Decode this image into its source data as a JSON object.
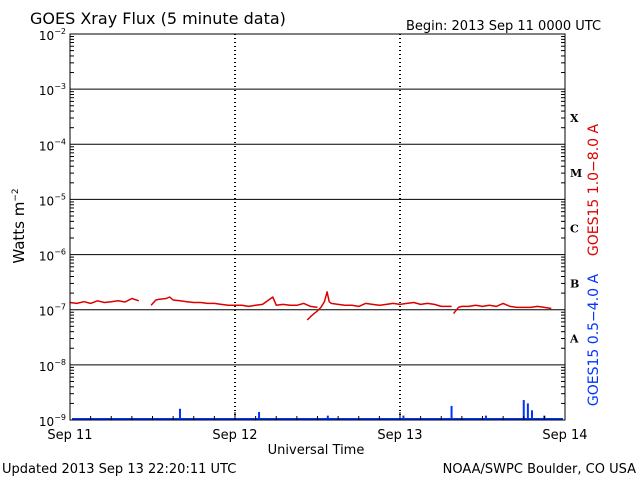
{
  "header": {
    "title": "GOES Xray Flux (5 minute data)",
    "begin": "Begin:  2013 Sep 11 0000 UTC"
  },
  "footer": {
    "updated": "Updated 2013 Sep 13 22:20:11 UTC",
    "credit": "NOAA/SWPC Boulder, CO USA"
  },
  "chart_data": {
    "type": "line",
    "title": "GOES Xray Flux (5 minute data)",
    "xlabel": "Universal Time",
    "ylabel_base": "Watts m",
    "ylabel_exp": "−2",
    "x_unit": "hours since 2013 Sep 11 0000 UTC",
    "xlim": [
      0,
      72
    ],
    "x_ticks": [
      {
        "x": 0,
        "label": "Sep 11"
      },
      {
        "x": 24,
        "label": "Sep 12"
      },
      {
        "x": 48,
        "label": "Sep 13"
      },
      {
        "x": 72,
        "label": "Sep 14"
      }
    ],
    "y_scale": "log",
    "ylim": [
      1e-09,
      0.01
    ],
    "y_ticks": [
      {
        "value": 0.01,
        "exp": "−2"
      },
      {
        "value": 0.001,
        "exp": "−3"
      },
      {
        "value": 0.0001,
        "exp": "−4"
      },
      {
        "value": 1e-05,
        "exp": "−5"
      },
      {
        "value": 1e-06,
        "exp": "−6"
      },
      {
        "value": 1e-07,
        "exp": "−7"
      },
      {
        "value": 1e-08,
        "exp": "−8"
      },
      {
        "value": 1e-09,
        "exp": "−9"
      }
    ],
    "flare_classes": [
      {
        "label": "X",
        "value": 0.0003
      },
      {
        "label": "M",
        "value": 3e-05
      },
      {
        "label": "C",
        "value": 3e-06
      },
      {
        "label": "B",
        "value": 3e-07
      },
      {
        "label": "A",
        "value": 3e-08
      }
    ],
    "series": [
      {
        "name": "GOES15 1.0−8.0 A",
        "color": "#dd0000",
        "segments": [
          [
            [
              0,
              1.35e-07
            ],
            [
              1,
              1.3e-07
            ],
            [
              2,
              1.4e-07
            ],
            [
              3,
              1.3e-07
            ],
            [
              4,
              1.45e-07
            ],
            [
              5,
              1.35e-07
            ],
            [
              6,
              1.4e-07
            ],
            [
              7,
              1.45e-07
            ],
            [
              8,
              1.38e-07
            ],
            [
              9,
              1.6e-07
            ],
            [
              10,
              1.45e-07
            ]
          ],
          [
            [
              11.8,
              1.2e-07
            ],
            [
              12.5,
              1.5e-07
            ],
            [
              13,
              1.55e-07
            ],
            [
              14,
              1.6e-07
            ],
            [
              14.5,
              1.7e-07
            ],
            [
              15,
              1.5e-07
            ],
            [
              16,
              1.45e-07
            ],
            [
              17,
              1.4e-07
            ],
            [
              18,
              1.35e-07
            ],
            [
              19,
              1.35e-07
            ],
            [
              20,
              1.3e-07
            ],
            [
              21,
              1.3e-07
            ],
            [
              22,
              1.25e-07
            ],
            [
              23,
              1.2e-07
            ],
            [
              24,
              1.2e-07
            ],
            [
              25,
              1.2e-07
            ],
            [
              26,
              1.15e-07
            ],
            [
              27,
              1.2e-07
            ],
            [
              28,
              1.25e-07
            ],
            [
              29.5,
              1.7e-07
            ],
            [
              30,
              1.2e-07
            ],
            [
              31,
              1.25e-07
            ],
            [
              32,
              1.2e-07
            ],
            [
              33,
              1.2e-07
            ],
            [
              34,
              1.3e-07
            ],
            [
              35,
              1.15e-07
            ],
            [
              36,
              1.1e-07
            ]
          ],
          [
            [
              34.5,
              6.5e-08
            ],
            [
              35,
              7.5e-08
            ],
            [
              35.5,
              8.5e-08
            ],
            [
              36,
              9.5e-08
            ],
            [
              36.5,
              1.1e-07
            ],
            [
              37,
              1.4e-07
            ],
            [
              37.4,
              2.1e-07
            ],
            [
              37.7,
              1.4e-07
            ],
            [
              38,
              1.3e-07
            ],
            [
              39,
              1.25e-07
            ],
            [
              40,
              1.2e-07
            ],
            [
              41,
              1.2e-07
            ],
            [
              42,
              1.15e-07
            ],
            [
              43,
              1.3e-07
            ],
            [
              44,
              1.25e-07
            ],
            [
              45,
              1.2e-07
            ],
            [
              46,
              1.25e-07
            ],
            [
              47,
              1.3e-07
            ],
            [
              48,
              1.25e-07
            ],
            [
              49,
              1.3e-07
            ],
            [
              50,
              1.35e-07
            ],
            [
              51,
              1.25e-07
            ],
            [
              52,
              1.3e-07
            ],
            [
              53,
              1.25e-07
            ],
            [
              54,
              1.15e-07
            ],
            [
              55.5,
              1.15e-07
            ]
          ],
          [
            [
              55.8,
              8.5e-08
            ],
            [
              56.5,
              1.1e-07
            ],
            [
              57,
              1.15e-07
            ],
            [
              58,
              1.15e-07
            ],
            [
              59,
              1.2e-07
            ],
            [
              60,
              1.15e-07
            ],
            [
              61,
              1.2e-07
            ],
            [
              62,
              1.15e-07
            ],
            [
              63,
              1.3e-07
            ],
            [
              64,
              1.15e-07
            ],
            [
              65,
              1.1e-07
            ],
            [
              66,
              1.1e-07
            ],
            [
              67,
              1.1e-07
            ],
            [
              68,
              1.15e-07
            ],
            [
              69,
              1.1e-07
            ],
            [
              70,
              1.05e-07
            ]
          ]
        ]
      },
      {
        "name": "GOES15 0.5−4.0 A",
        "color": "#0033ff",
        "baseline": 8e-10,
        "spikes": [
          {
            "x": 16,
            "value": 1.6e-09
          },
          {
            "x": 27.5,
            "value": 1.4e-09
          },
          {
            "x": 37.5,
            "value": 1.2e-09
          },
          {
            "x": 48.5,
            "value": 1.2e-09
          },
          {
            "x": 55.5,
            "value": 1.8e-09
          },
          {
            "x": 60.5,
            "value": 1.2e-09
          },
          {
            "x": 66.0,
            "value": 2.3e-09
          },
          {
            "x": 66.6,
            "value": 2e-09
          },
          {
            "x": 67.2,
            "value": 1.5e-09
          },
          {
            "x": 69.0,
            "value": 1.2e-09
          }
        ]
      }
    ],
    "grid": true
  }
}
